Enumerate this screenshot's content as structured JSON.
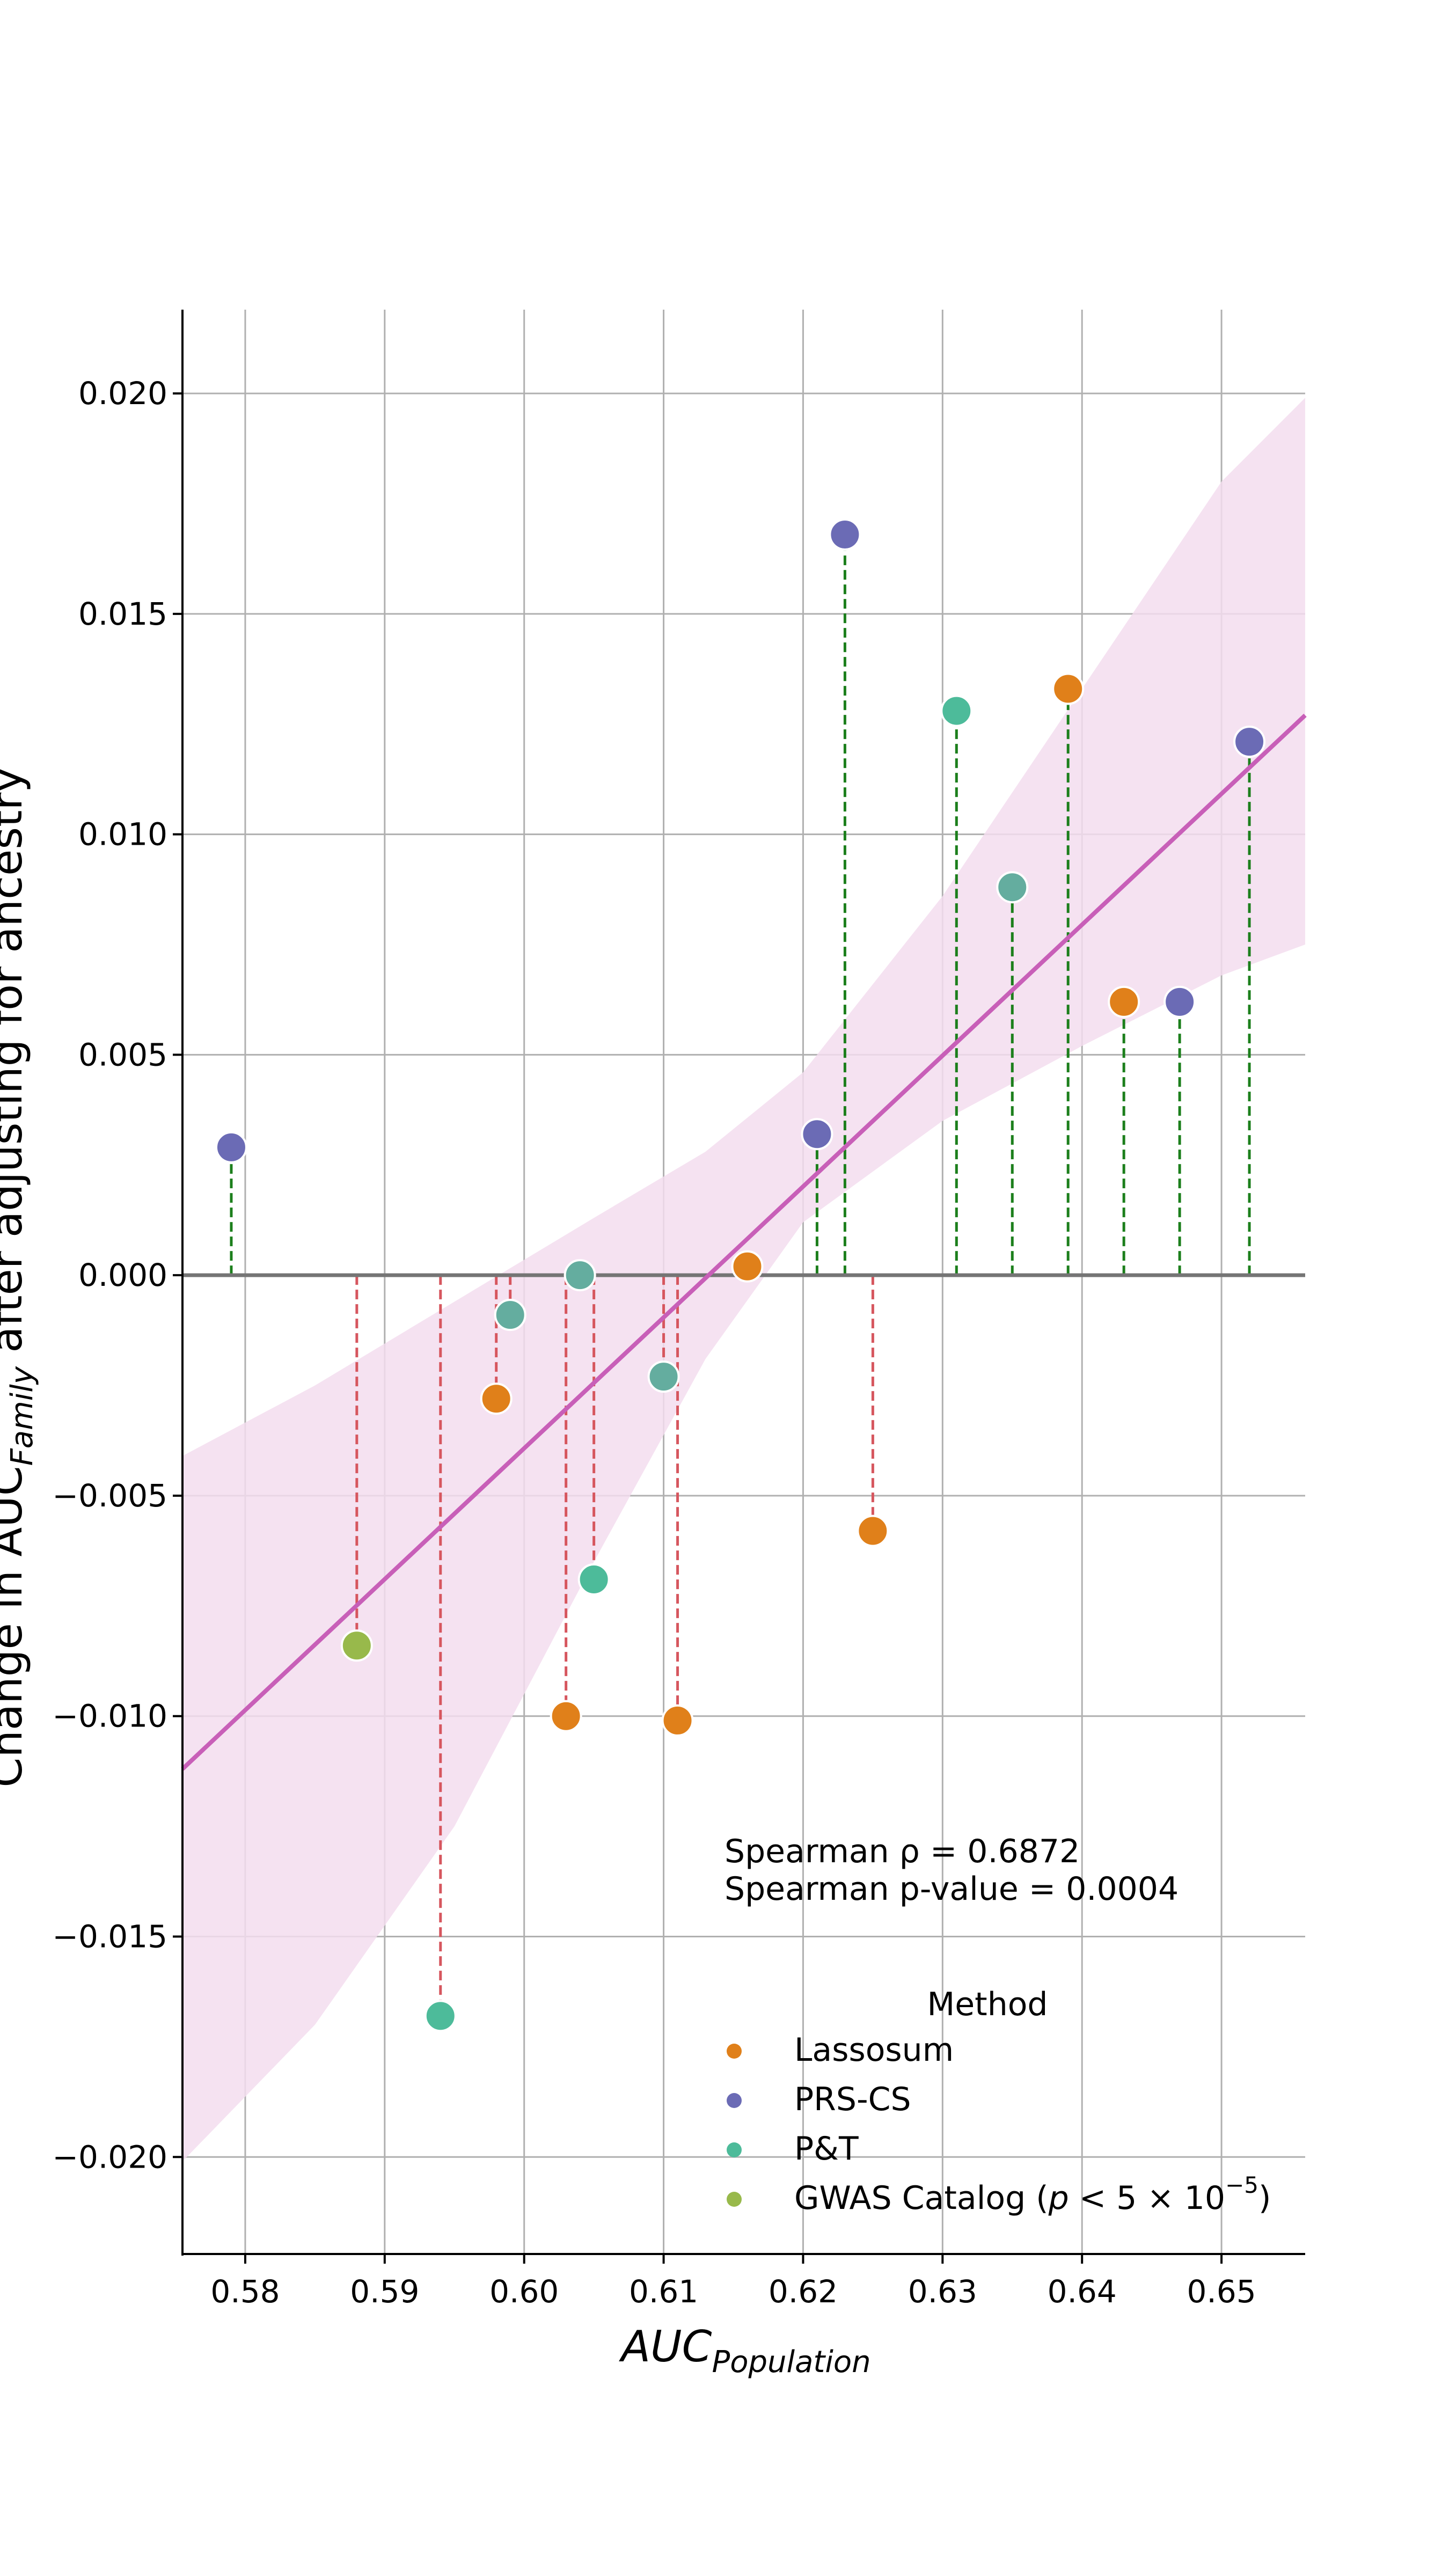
{
  "chart_data": {
    "type": "scatter",
    "title": "",
    "xlabel": {
      "main": "AUC",
      "sub": "Population"
    },
    "ylabel": {
      "prefix": "Change in AUC",
      "sub": "Family",
      "suffix": " after adjusting for ancestry"
    },
    "xlim": [
      0.5755,
      0.656
    ],
    "ylim": [
      -0.0222,
      0.0219
    ],
    "xticks": [
      0.58,
      0.59,
      0.6,
      0.61,
      0.62,
      0.63,
      0.64,
      0.65
    ],
    "xtick_labels": [
      "0.58",
      "0.59",
      "0.60",
      "0.61",
      "0.62",
      "0.63",
      "0.64",
      "0.65"
    ],
    "yticks": [
      -0.02,
      -0.015,
      -0.01,
      -0.005,
      0.0,
      0.005,
      0.01,
      0.015,
      0.02
    ],
    "ytick_labels": [
      "−0.020",
      "−0.015",
      "−0.010",
      "−0.005",
      "0.000",
      "0.005",
      "0.010",
      "0.015",
      "0.020"
    ],
    "grid": true,
    "colors": {
      "Lassosum": "#e0801a",
      "PRS-CS": "#6b6bb5",
      "P&T": "#4dbb9a",
      "GWAS Catalog": "#98b94b",
      "P&T/PRS-CS": "#64ad9f",
      "regression": "#c85fb8",
      "band": "#f3ddee",
      "positive_stem": "#1c7f1c",
      "negative_stem": "#d6565e",
      "zero_line": "#757575",
      "grid": "#b0b0b0"
    },
    "points": [
      {
        "x": 0.579,
        "y": 0.0029,
        "method": "PRS-CS"
      },
      {
        "x": 0.588,
        "y": -0.0084,
        "method": "GWAS Catalog"
      },
      {
        "x": 0.594,
        "y": -0.0168,
        "method": "P&T"
      },
      {
        "x": 0.598,
        "y": -0.0028,
        "method": "Lassosum"
      },
      {
        "x": 0.599,
        "y": -0.0009,
        "method": "P&T/PRS-CS"
      },
      {
        "x": 0.603,
        "y": -0.01,
        "method": "Lassosum"
      },
      {
        "x": 0.604,
        "y": 0.0,
        "method": "P&T/PRS-CS"
      },
      {
        "x": 0.605,
        "y": -0.0069,
        "method": "P&T"
      },
      {
        "x": 0.61,
        "y": -0.0023,
        "method": "P&T/PRS-CS"
      },
      {
        "x": 0.611,
        "y": -0.0101,
        "method": "Lassosum"
      },
      {
        "x": 0.616,
        "y": 0.0002,
        "method": "Lassosum"
      },
      {
        "x": 0.621,
        "y": 0.0032,
        "method": "PRS-CS"
      },
      {
        "x": 0.623,
        "y": 0.0168,
        "method": "PRS-CS"
      },
      {
        "x": 0.625,
        "y": -0.0058,
        "method": "Lassosum"
      },
      {
        "x": 0.631,
        "y": 0.0128,
        "method": "P&T"
      },
      {
        "x": 0.635,
        "y": 0.0088,
        "method": "P&T/PRS-CS"
      },
      {
        "x": 0.639,
        "y": 0.0133,
        "method": "Lassosum"
      },
      {
        "x": 0.643,
        "y": 0.0062,
        "method": "Lassosum"
      },
      {
        "x": 0.647,
        "y": 0.0062,
        "method": "PRS-CS"
      },
      {
        "x": 0.652,
        "y": 0.0121,
        "method": "PRS-CS"
      }
    ],
    "regression": {
      "x": [
        0.5755,
        0.656
      ],
      "y": [
        -0.0112,
        0.0127
      ]
    },
    "confidence_band": {
      "x": [
        0.5755,
        0.585,
        0.595,
        0.605,
        0.613,
        0.62,
        0.63,
        0.64,
        0.65,
        0.656
      ],
      "upper": [
        -0.0041,
        -0.0025,
        -0.0006,
        0.0013,
        0.0028,
        0.0046,
        0.0086,
        0.0133,
        0.018,
        0.0199
      ],
      "lower": [
        -0.0201,
        -0.017,
        -0.0125,
        -0.0065,
        -0.0019,
        0.0012,
        0.0035,
        0.0052,
        0.0068,
        0.0075
      ]
    },
    "annotations": {
      "spearman_rho": "Spearman ρ = 0.6872",
      "spearman_p": "Spearman p-value = 0.0004"
    },
    "legend": {
      "title": "Method",
      "placement": "lower-right",
      "entries": [
        {
          "label": "Lassosum",
          "method": "Lassosum"
        },
        {
          "label": "PRS-CS",
          "method": "PRS-CS"
        },
        {
          "label": "P&T",
          "method": "P&T"
        },
        {
          "label": "GWAS Catalog (p < 5 × 10⁻⁵)",
          "method": "GWAS Catalog",
          "rich": {
            "prefix": "GWAS Catalog (",
            "p": "p",
            "middle": " < 5 × 10",
            "exp": "−5",
            "suffix": ")"
          }
        }
      ]
    }
  }
}
